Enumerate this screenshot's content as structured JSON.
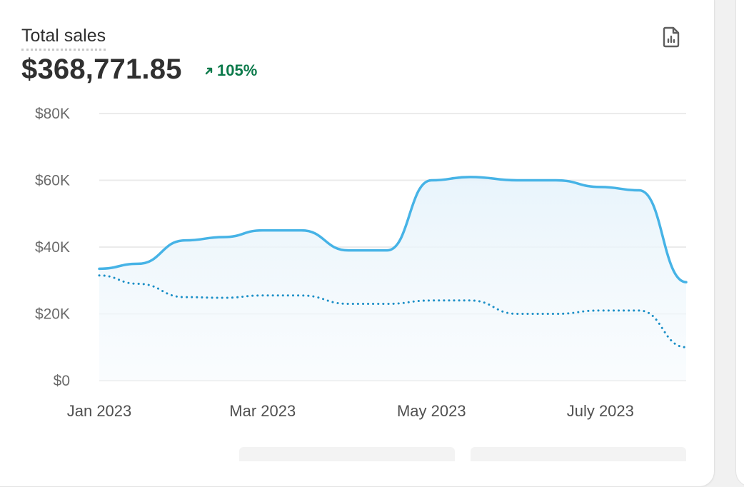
{
  "card": {
    "title": "Total sales",
    "total": "$368,771.85",
    "change": "105%",
    "report_icon": "report-icon",
    "change_icon": "arrow-up-right-icon"
  },
  "colors": {
    "primary_line": "#46b3e6",
    "comparison_line": "#1b8fc7",
    "positive": "#0c7a4b",
    "gridline": "#ebebeb"
  },
  "chart_data": {
    "type": "area",
    "title": "Total sales",
    "x": [
      "2023-01-01",
      "2023-01-15",
      "2023-02-01",
      "2023-02-15",
      "2023-03-01",
      "2023-03-15",
      "2023-04-01",
      "2023-04-15",
      "2023-05-01",
      "2023-05-15",
      "2023-06-01",
      "2023-06-15",
      "2023-07-01",
      "2023-07-15",
      "2023-08-01"
    ],
    "x_ticks": [
      "Jan 2023",
      "Mar 2023",
      "May 2023",
      "July 2023"
    ],
    "y_ticks": [
      "$0",
      "$20K",
      "$40K",
      "$60K",
      "$80K"
    ],
    "ylim": [
      0,
      80000
    ],
    "grid": true,
    "series": [
      {
        "style": "solid",
        "values": [
          33500,
          35000,
          42000,
          43000,
          45000,
          45000,
          39000,
          39000,
          60000,
          61000,
          60000,
          60000,
          58000,
          57000,
          29500
        ]
      },
      {
        "style": "dotted",
        "values": [
          31500,
          29000,
          25000,
          24800,
          25500,
          25500,
          23000,
          23000,
          24000,
          24000,
          20000,
          20000,
          21000,
          21000,
          10000
        ]
      }
    ]
  }
}
